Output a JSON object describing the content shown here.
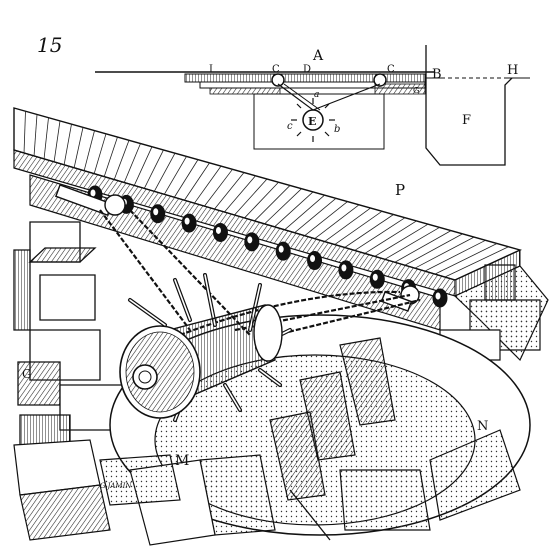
{
  "figure": {
    "number": "15",
    "engraver": "G.JAMIN"
  },
  "labels": {
    "A": "A",
    "B": "B",
    "H": "H",
    "I": "I",
    "C1": "C",
    "C2": "C",
    "D": "D",
    "G": "G",
    "a": "a",
    "b": "b",
    "c": "c",
    "E": "E",
    "F": "F",
    "P": "P",
    "M": "M",
    "N": "N"
  }
}
